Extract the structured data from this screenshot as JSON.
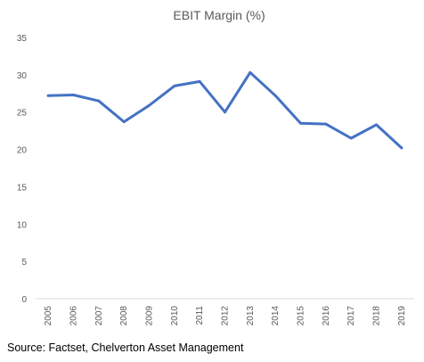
{
  "chart_data": {
    "type": "line",
    "title": "EBIT Margin (%)",
    "xlabel": "",
    "ylabel": "",
    "x": [
      "2005",
      "2006",
      "2007",
      "2008",
      "2009",
      "2010",
      "2011",
      "2012",
      "2013",
      "2014",
      "2015",
      "2016",
      "2017",
      "2018",
      "2019"
    ],
    "series": [
      {
        "values": [
          27.2,
          27.3,
          26.5,
          23.7,
          25.9,
          28.5,
          29.1,
          25.0,
          30.3,
          27.2,
          23.5,
          23.4,
          21.5,
          23.3,
          20.2
        ]
      }
    ],
    "ylim": [
      0,
      35
    ],
    "yticks": [
      "0",
      "5",
      "10",
      "15",
      "20",
      "25",
      "30",
      "35"
    ],
    "grid": false,
    "legend": "none",
    "line_color": "#4472C4"
  },
  "source": "Source: Factset, Chelverton Asset Management"
}
